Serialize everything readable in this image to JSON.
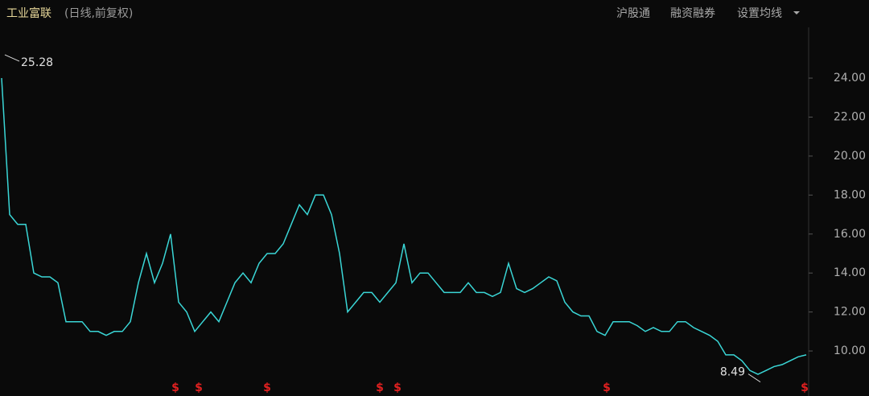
{
  "chart_data": {
    "type": "line",
    "title": "工业富联",
    "subtitle": "(日线,前复权)",
    "menu": [
      "沪股通",
      "融资融券",
      "设置均线"
    ],
    "series": [
      {
        "name": "工业富联",
        "color": "#3ad6d6",
        "values": [
          24,
          17,
          16.5,
          16.5,
          14,
          13.8,
          13.8,
          13.5,
          11.5,
          11.5,
          11.5,
          11,
          11,
          10.8,
          11,
          11,
          11.5,
          13.5,
          15,
          13.5,
          14.5,
          16,
          12.5,
          12,
          11,
          11.5,
          12,
          11.5,
          12.5,
          13.5,
          14,
          13.5,
          14.5,
          15,
          15,
          15.5,
          16.5,
          17.5,
          17,
          18,
          18,
          17,
          15,
          12,
          12.5,
          13,
          13,
          12.5,
          13,
          13.5,
          15.5,
          13.5,
          14,
          14,
          13.5,
          13,
          13,
          13,
          13.5,
          13,
          13,
          12.8,
          13,
          14.5,
          13.2,
          13,
          13.2,
          13.5,
          13.8,
          13.6,
          12.5,
          12,
          11.8,
          11.8,
          11,
          10.8,
          11.5,
          11.5,
          11.5,
          11.3,
          11,
          11.2,
          11,
          11,
          11.5,
          11.5,
          11.2,
          11,
          10.8,
          10.5,
          9.8,
          9.8,
          9.5,
          9,
          8.8,
          9,
          9.2,
          9.3,
          9.5,
          9.7,
          9.8
        ]
      }
    ],
    "high": 25.28,
    "low": 8.49,
    "markers": [
      {
        "x": 21.6,
        "label": "$"
      },
      {
        "x": 24.5,
        "label": "$"
      },
      {
        "x": 33,
        "label": "$"
      },
      {
        "x": 47,
        "label": "$"
      },
      {
        "x": 49.2,
        "label": "$"
      },
      {
        "x": 75.2,
        "label": "$"
      },
      {
        "x": 99.8,
        "label": "$"
      }
    ],
    "ylim": [
      7.69,
      25.53
    ],
    "yticks": [
      {
        "value": 10,
        "label": "10.00"
      },
      {
        "value": 12,
        "label": "12.00"
      },
      {
        "value": 14,
        "label": "14.00"
      },
      {
        "value": 16,
        "label": "16.00"
      },
      {
        "value": 18,
        "label": "18.00"
      },
      {
        "value": 20,
        "label": "20.00"
      },
      {
        "value": 22,
        "label": "22.00"
      },
      {
        "value": 24,
        "label": "24.00"
      }
    ]
  }
}
